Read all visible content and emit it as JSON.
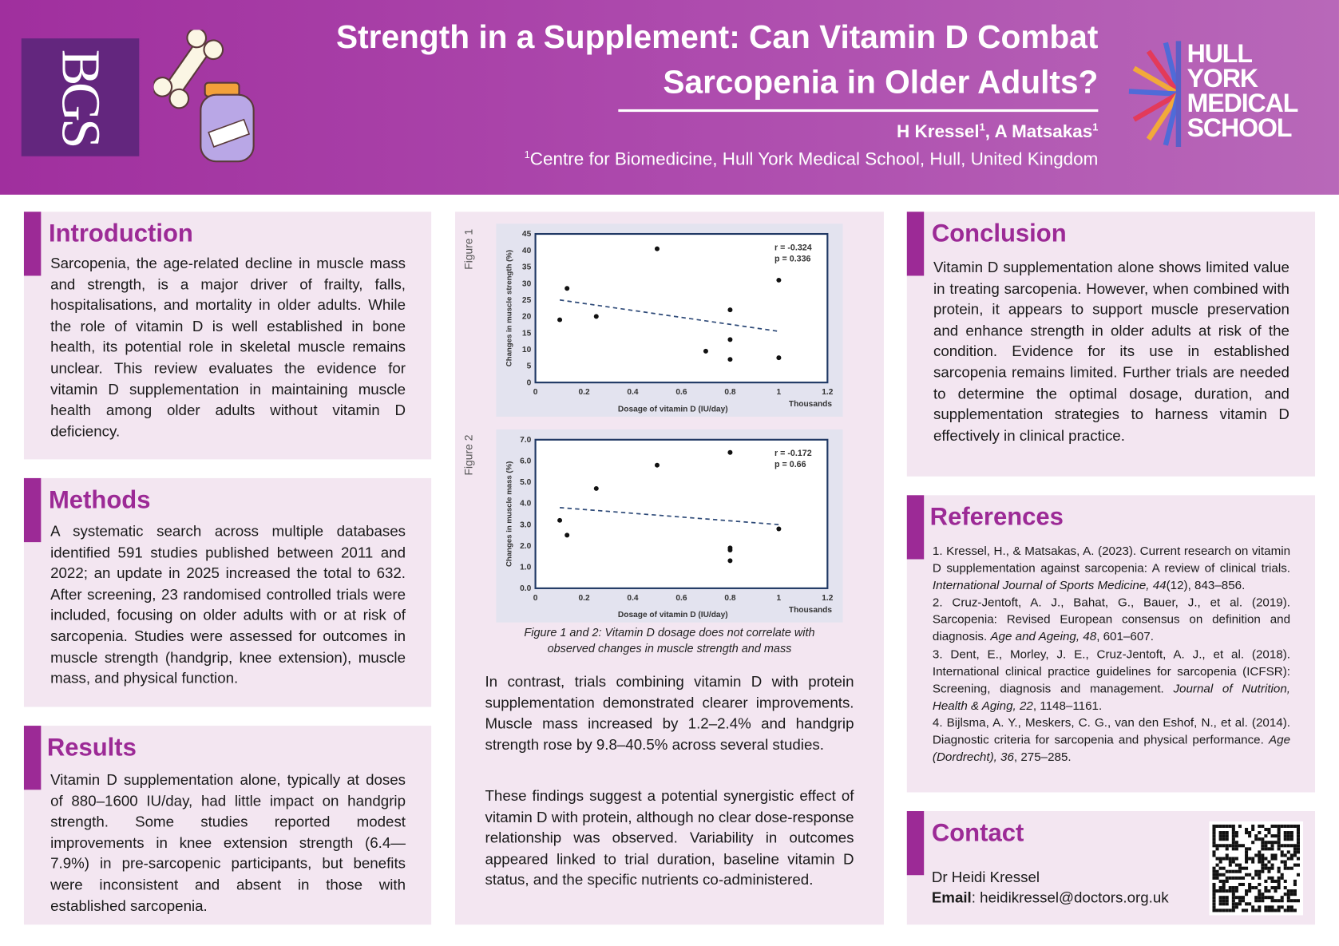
{
  "header": {
    "logo_left": "BGS",
    "title_line1": "Strength in a Supplement: Can Vitamin D Combat",
    "title_line2": "Sarcopenia in Older Adults?",
    "author1": "H Kressel",
    "author2": "A Matsakas",
    "sup": "1",
    "affiliation": "Centre for Biomedicine, Hull York Medical School, Hull, United Kingdom",
    "logo_right": [
      "HULL",
      "YORK",
      "MEDICAL",
      "SCHOOL"
    ]
  },
  "colors": {
    "accent": "#9c2a96",
    "card": "#f3e6f1",
    "header_start": "#a02f9e",
    "header_end": "#b868b9"
  },
  "introduction": {
    "heading": "Introduction",
    "text": "Sarcopenia, the age-related decline in muscle mass and strength, is a major driver of frailty, falls, hospitalisations, and mortality in older adults. While the role of vitamin D is well established in bone health, its potential role in skeletal muscle remains unclear. This review evaluates the evidence for vitamin D supplementation in maintaining muscle health among older adults without vitamin D deficiency."
  },
  "methods": {
    "heading": "Methods",
    "text": "A systematic search across multiple databases identified 591 studies published between 2011 and 2022; an update in 2025 increased the total to 632. After screening, 23 randomised controlled trials were included, focusing on older adults with or at risk of sarcopenia. Studies were assessed for outcomes in muscle strength (handgrip, knee extension), muscle mass, and physical function."
  },
  "results": {
    "heading": "Results",
    "text": "Vitamin D supplementation alone, typically at doses of 880–1600 IU/day, had little impact on handgrip strength. Some studies reported modest improvements in knee extension strength (6.4—7.9%) in pre-sarcopenic participants, but benefits were inconsistent and absent in those with established sarcopenia."
  },
  "middle": {
    "caption": "Figure 1 and 2: Vitamin D dosage does not correlate with observed changes in muscle strength and mass",
    "para1": "In contrast, trials combining vitamin D with protein supplementation demonstrated clearer improvements. Muscle mass increased by 1.2–2.4% and handgrip strength rose by 9.8–40.5% across several studies.",
    "para2": "These findings suggest a potential synergistic effect of vitamin D with protein, although no clear dose-response relationship was observed. Variability in outcomes appeared linked to trial duration, baseline vitamin D status, and the specific nutrients co-administered."
  },
  "chart_data": [
    {
      "type": "scatter",
      "figure_label": "Figure 1",
      "xlabel": "Dosage of vitamin D (IU/day)",
      "x_unit_label": "Thousands",
      "ylabel": "Changes in muscle strength (%)",
      "xlim": [
        0,
        1.2
      ],
      "ylim": [
        0,
        45
      ],
      "xticks": [
        "0",
        "0.2",
        "0.4",
        "0.6",
        "0.8",
        "1",
        "1.2"
      ],
      "yticks": [
        "0",
        "5",
        "10",
        "15",
        "20",
        "25",
        "30",
        "35",
        "40",
        "45"
      ],
      "points": [
        [
          0.1,
          19
        ],
        [
          0.13,
          28.5
        ],
        [
          0.25,
          20
        ],
        [
          0.5,
          40.5
        ],
        [
          0.7,
          9.5
        ],
        [
          0.8,
          22
        ],
        [
          0.8,
          13
        ],
        [
          0.8,
          7
        ],
        [
          1.0,
          31
        ],
        [
          1.0,
          7.5
        ]
      ],
      "trendline": [
        [
          0.1,
          25
        ],
        [
          1.0,
          15.5
        ]
      ],
      "annotation": [
        "r = -0.324",
        "p = 0.336"
      ],
      "grid": false
    },
    {
      "type": "scatter",
      "figure_label": "Figure 2",
      "xlabel": "Dosage of vitamin D (IU/day)",
      "x_unit_label": "Thousands",
      "ylabel": "Changes in muscle mass (%)",
      "xlim": [
        0,
        1.2
      ],
      "ylim": [
        0,
        7
      ],
      "xticks": [
        "0",
        "0.2",
        "0.4",
        "0.6",
        "0.8",
        "1",
        "1.2"
      ],
      "yticks": [
        "0.0",
        "1.0",
        "2.0",
        "3.0",
        "4.0",
        "5.0",
        "6.0",
        "7.0"
      ],
      "points": [
        [
          0.1,
          3.2
        ],
        [
          0.13,
          2.5
        ],
        [
          0.25,
          4.7
        ],
        [
          0.5,
          5.8
        ],
        [
          0.8,
          6.4
        ],
        [
          0.8,
          1.9
        ],
        [
          0.8,
          1.8
        ],
        [
          0.8,
          1.3
        ],
        [
          1.0,
          2.8
        ]
      ],
      "trendline": [
        [
          0.1,
          3.8
        ],
        [
          1.0,
          3.0
        ]
      ],
      "annotation": [
        "r = -0.172",
        "p = 0.66"
      ],
      "grid": false
    }
  ],
  "conclusion": {
    "heading": "Conclusion",
    "text": "Vitamin D supplementation alone shows limited value in treating sarcopenia. However, when combined with protein, it appears to support muscle preservation and enhance strength in older adults at risk of the condition. Evidence for its use in established sarcopenia remains limited. Further trials are needed to determine the optimal dosage, duration, and supplementation strategies to harness vitamin D effectively in clinical practice."
  },
  "references": {
    "heading": "References",
    "items": [
      {
        "pre": "1. Kressel, H., & Matsakas, A. (2023). Current research on vitamin D supplementation against sarcopenia: A review of clinical trials. ",
        "ital": "International Journal of Sports Medicine, 44",
        "post": "(12), 843–856."
      },
      {
        "pre": "2. Cruz-Jentoft, A. J., Bahat, G., Bauer, J., et al. (2019). Sarcopenia: Revised European consensus on definition and diagnosis. ",
        "ital": "Age and Ageing, 48",
        "post": ", 601–607."
      },
      {
        "pre": "3. Dent, E., Morley, J. E., Cruz-Jentoft, A. J., et al. (2018). International clinical practice guidelines for sarcopenia (ICFSR): Screening, diagnosis and management. ",
        "ital": "Journal of Nutrition, Health & Aging, 22",
        "post": ", 1148–1161."
      },
      {
        "pre": "4. Bijlsma, A. Y., Meskers, C. G., van den Eshof, N., et al. (2014). Diagnostic criteria for sarcopenia and physical performance. ",
        "ital": "Age (Dordrecht), 36",
        "post": ", 275–285."
      }
    ]
  },
  "contact": {
    "heading": "Contact",
    "name": "Dr Heidi Kressel",
    "email_label": "Email",
    "email": "heidikressel@doctors.org.uk",
    "qr_icon": "qr-code"
  }
}
